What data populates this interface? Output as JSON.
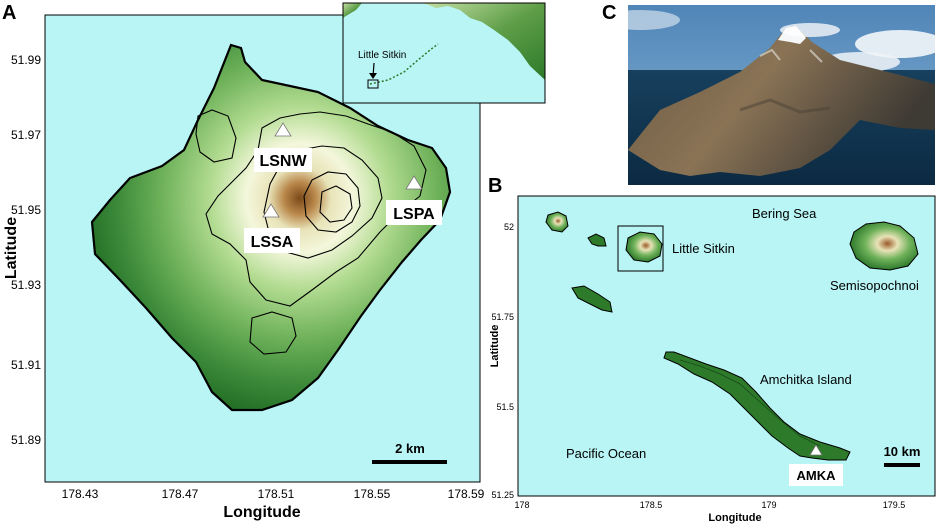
{
  "panels": {
    "a": {
      "letter": "A",
      "xlabel": "Longitude",
      "ylabel": "Latitude",
      "x_ticks": [
        "178.43",
        "178.47",
        "178.51",
        "178.55",
        "178.59"
      ],
      "y_ticks": [
        "51.99",
        "51.97",
        "51.95",
        "51.93",
        "51.91",
        "51.89"
      ],
      "stations": [
        {
          "name": "LSNW",
          "lon": 178.514,
          "lat": 51.971
        },
        {
          "name": "LSPA",
          "lon": 178.572,
          "lat": 51.958
        },
        {
          "name": "LSSA",
          "lon": 178.511,
          "lat": 51.951
        }
      ],
      "scale_bar": "2 km",
      "inset_label": "Little Sitkin"
    },
    "b": {
      "letter": "B",
      "xlabel": "Longitude",
      "ylabel": "Latitude",
      "x_ticks": [
        "178",
        "178.5",
        "179",
        "179.5"
      ],
      "y_ticks": [
        "52",
        "51.75",
        "51.5",
        "51.25"
      ],
      "places": {
        "bering_sea": "Bering Sea",
        "little_sitkin": "Little Sitkin",
        "semisopochnoi": "Semisopochnoi",
        "amchitka": "Amchitka Island",
        "pacific": "Pacific Ocean"
      },
      "station": "AMKA",
      "scale_bar": "10 km"
    },
    "c": {
      "letter": "C"
    }
  },
  "colors": {
    "water": "#b9f5f5",
    "land_low": "#1f6b22",
    "land_mid": "#8fc96a",
    "land_high": "#f4f7dc",
    "summit": "#7a4a1a"
  }
}
